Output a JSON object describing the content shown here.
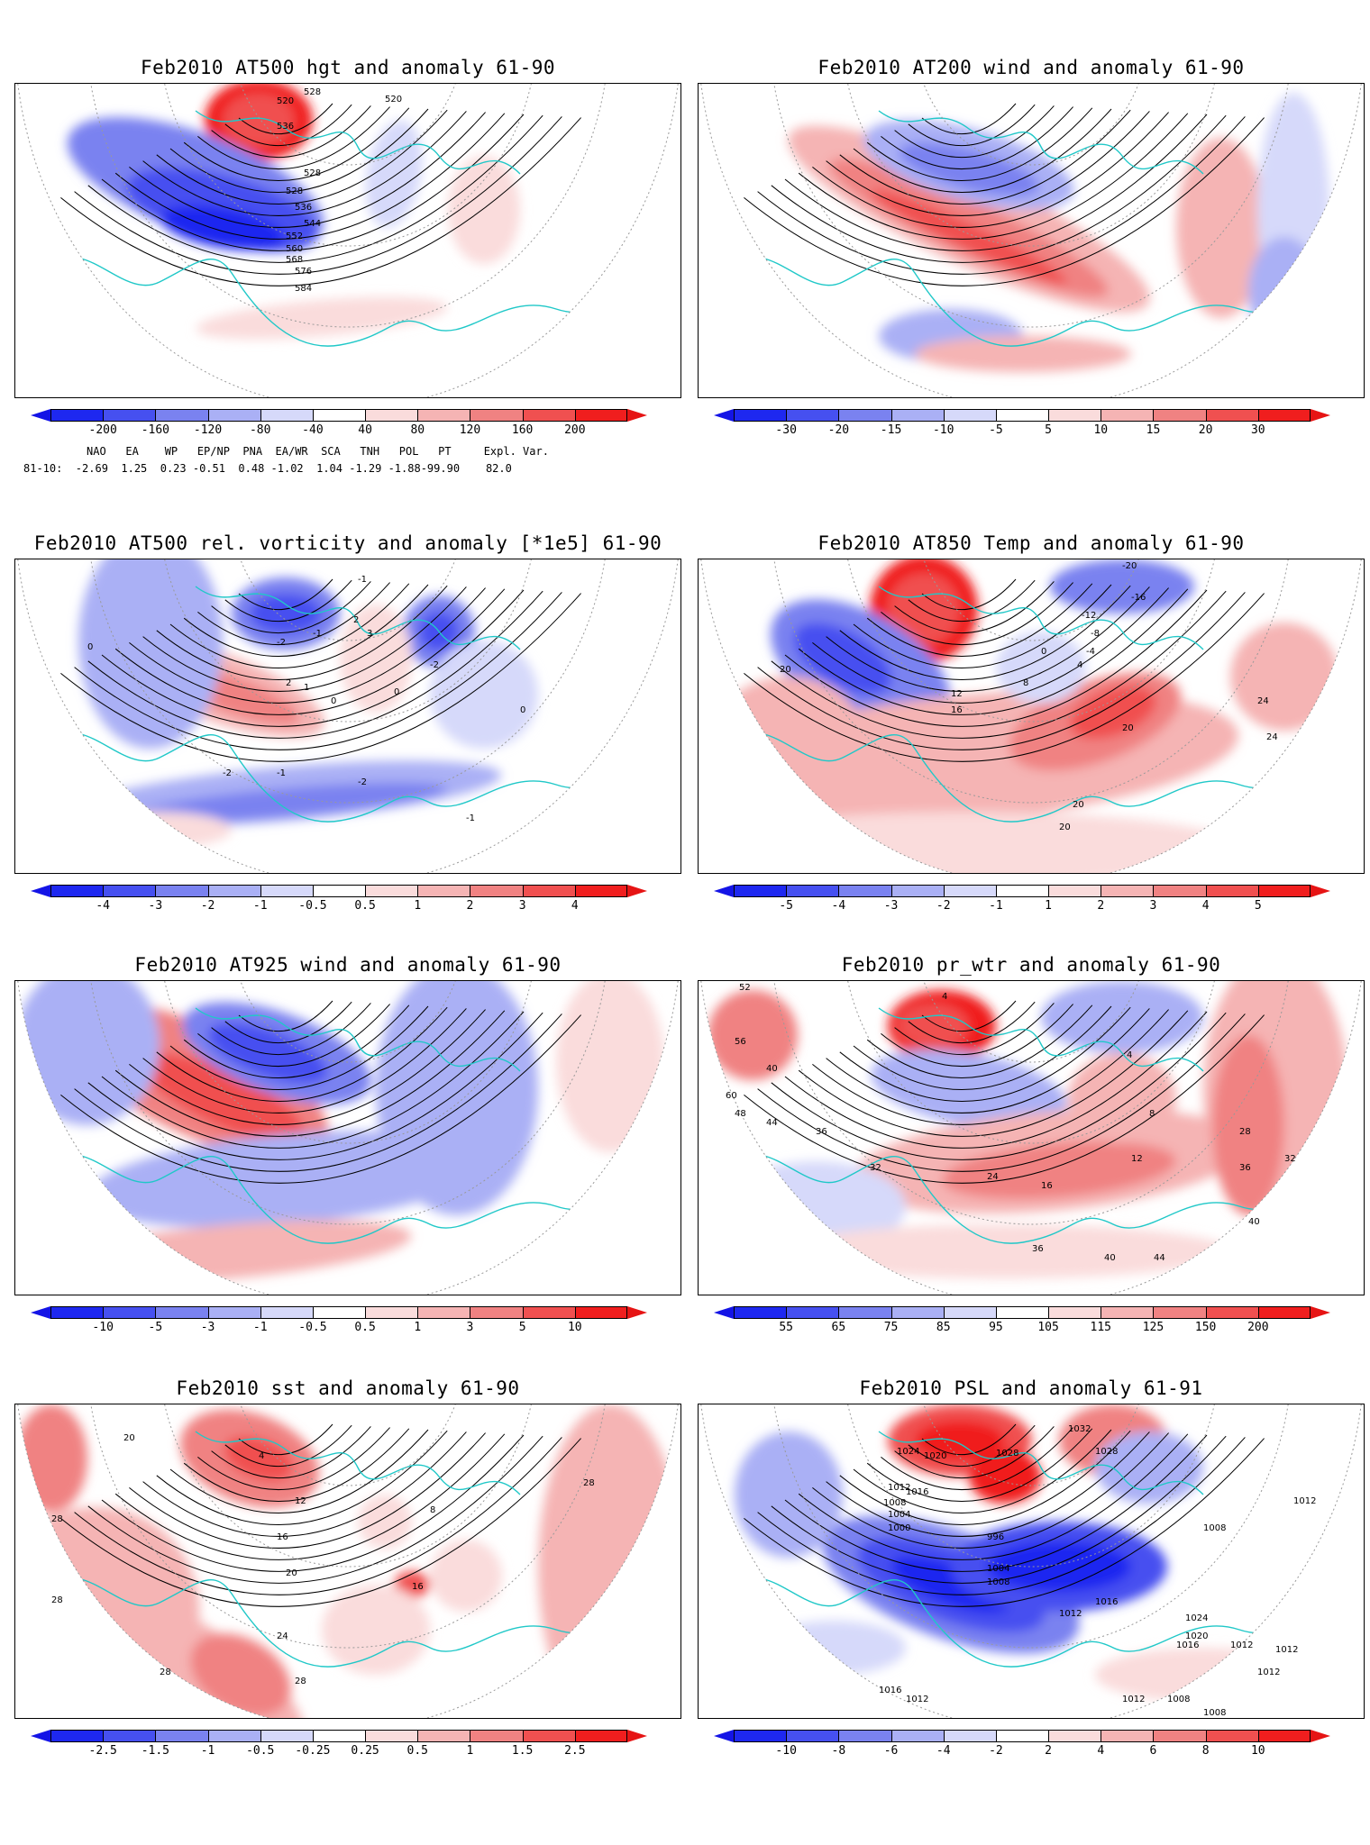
{
  "colors": {
    "neg": [
      "#1e28f0",
      "#4650f0",
      "#7a82f0",
      "#aab0f5",
      "#d6d9fa"
    ],
    "pos": [
      "#fadcdc",
      "#f5b4b4",
      "#f08282",
      "#f05050",
      "#f01e1e"
    ],
    "coast": "#20c8c8",
    "contour": "#000000"
  },
  "panels": [
    {
      "id": "p1",
      "title": "Feb2010 AT500 hgt and anomaly 61-90",
      "ticks": [
        "-200",
        "-160",
        "-120",
        "-80",
        "-40",
        "40",
        "80",
        "120",
        "160",
        "200"
      ],
      "labels": [
        "528",
        "520",
        "520",
        "536",
        "528",
        "528",
        "536",
        "544",
        "552",
        "560",
        "568",
        "576",
        "584"
      ]
    },
    {
      "id": "p2",
      "title": "Feb2010 AT200 wind and anomaly 61-90",
      "ticks": [
        "-30",
        "-20",
        "-15",
        "-10",
        "-5",
        "5",
        "10",
        "15",
        "20",
        "30"
      ],
      "labels": []
    },
    {
      "id": "p3",
      "title": "Feb2010 AT500 rel. vorticity and anomaly [*1e5] 61-90",
      "ticks": [
        "-4",
        "-3",
        "-2",
        "-1",
        "-0.5",
        "0.5",
        "1",
        "2",
        "3",
        "4"
      ],
      "labels": [
        "-1",
        "-2",
        "-1",
        "3",
        "2",
        "0",
        "-2",
        "2",
        "1",
        "0",
        "-2",
        "-1",
        "-2",
        "-1",
        "0",
        "0"
      ]
    },
    {
      "id": "p4",
      "title": "Feb2010 AT850 Temp and anomaly 61-90",
      "ticks": [
        "-5",
        "-4",
        "-3",
        "-2",
        "-1",
        "1",
        "2",
        "3",
        "4",
        "5"
      ],
      "labels": [
        "-20",
        "-16",
        "-12",
        "-8",
        "-4",
        "0",
        "4",
        "8",
        "12",
        "16",
        "20",
        "20",
        "24",
        "24",
        "20",
        "20"
      ]
    },
    {
      "id": "p5",
      "title": "Feb2010 AT925 wind and anomaly 61-90",
      "ticks": [
        "-10",
        "-5",
        "-3",
        "-1",
        "-0.5",
        "0.5",
        "1",
        "3",
        "5",
        "10"
      ],
      "labels": []
    },
    {
      "id": "p6",
      "title": "Feb2010 pr_wtr and anomaly 61-90",
      "ticks": [
        "55",
        "65",
        "75",
        "85",
        "95",
        "105",
        "115",
        "125",
        "150",
        "200"
      ],
      "labels": [
        "52",
        "56",
        "40",
        "60",
        "48",
        "44",
        "36",
        "32",
        "24",
        "16",
        "12",
        "8",
        "4",
        "4",
        "28",
        "32",
        "36",
        "40",
        "44",
        "40",
        "36"
      ]
    },
    {
      "id": "p7",
      "title": "Feb2010 sst and anomaly 61-90",
      "ticks": [
        "-2.5",
        "-1.5",
        "-1",
        "-0.5",
        "-0.25",
        "0.25",
        "0.5",
        "1",
        "1.5",
        "2.5"
      ],
      "labels": [
        "28",
        "28",
        "20",
        "4",
        "12",
        "16",
        "20",
        "24",
        "28",
        "28",
        "8",
        "16",
        "28"
      ]
    },
    {
      "id": "p8",
      "title": "Feb2010 PSL and anomaly 61-91",
      "ticks": [
        "-10",
        "-8",
        "-6",
        "-4",
        "-2",
        "2",
        "4",
        "6",
        "8",
        "10"
      ],
      "labels": [
        "1024",
        "1020",
        "1028",
        "1032",
        "1028",
        "1016",
        "1012",
        "1008",
        "1004",
        "1000",
        "996",
        "1004",
        "1008",
        "1012",
        "1016",
        "1016",
        "1012",
        "1012",
        "1008",
        "1008",
        "1012",
        "1012",
        "1016",
        "1020",
        "1024",
        "1012",
        "1012",
        "1008"
      ]
    }
  ],
  "indices": {
    "header": "NAO   EA    WP   EP/NP  PNA  EA/WR  SCA   TNH   POL   PT     Expl. Var.",
    "row": "81-10:  -2.69  1.25  0.23 -0.51  0.48 -1.02  1.04 -1.29 -1.88-99.90    82.0"
  }
}
